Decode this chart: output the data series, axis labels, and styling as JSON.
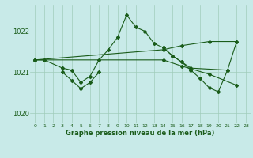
{
  "bg_color": "#c8eae8",
  "line_color": "#1a5c1a",
  "grid_color": "#a0ccbb",
  "xlabel": "Graphe pression niveau de la mer (hPa)",
  "xlabel_color": "#1a5c1a",
  "xlim": [
    -0.5,
    23.5
  ],
  "ylim": [
    1019.75,
    1022.65
  ],
  "yticks": [
    1020,
    1021,
    1022
  ],
  "xticks": [
    0,
    1,
    2,
    3,
    4,
    5,
    6,
    7,
    8,
    9,
    10,
    11,
    12,
    13,
    14,
    15,
    16,
    17,
    18,
    19,
    20,
    21,
    22,
    23
  ],
  "series_main": {
    "x": [
      0,
      1,
      3,
      4,
      5,
      6,
      7,
      8,
      9,
      10,
      11,
      12,
      13,
      14,
      15,
      16,
      17,
      21
    ],
    "y": [
      1021.3,
      1021.3,
      1021.1,
      1021.05,
      1020.75,
      1020.9,
      1021.3,
      1021.55,
      1021.85,
      1022.4,
      1022.1,
      1022.0,
      1021.7,
      1021.6,
      1021.4,
      1021.25,
      1021.1,
      1021.05
    ]
  },
  "series_spike": {
    "x": [
      3,
      4,
      5,
      6,
      7
    ],
    "y": [
      1021.0,
      1020.8,
      1020.6,
      1020.75,
      1021.0
    ]
  },
  "series_flat_up": {
    "x": [
      0,
      14,
      16,
      19,
      22
    ],
    "y": [
      1021.3,
      1021.55,
      1021.65,
      1021.75,
      1021.75
    ]
  },
  "series_flat_down": {
    "x": [
      0,
      14,
      16,
      19,
      22
    ],
    "y": [
      1021.3,
      1021.3,
      1021.15,
      1020.95,
      1020.68
    ]
  },
  "series_right_v": {
    "x": [
      14,
      15,
      16,
      17,
      18,
      19,
      20,
      21,
      22
    ],
    "y": [
      1021.6,
      1021.4,
      1021.25,
      1021.05,
      1020.85,
      1020.62,
      1020.52,
      1021.05,
      1021.75
    ]
  }
}
